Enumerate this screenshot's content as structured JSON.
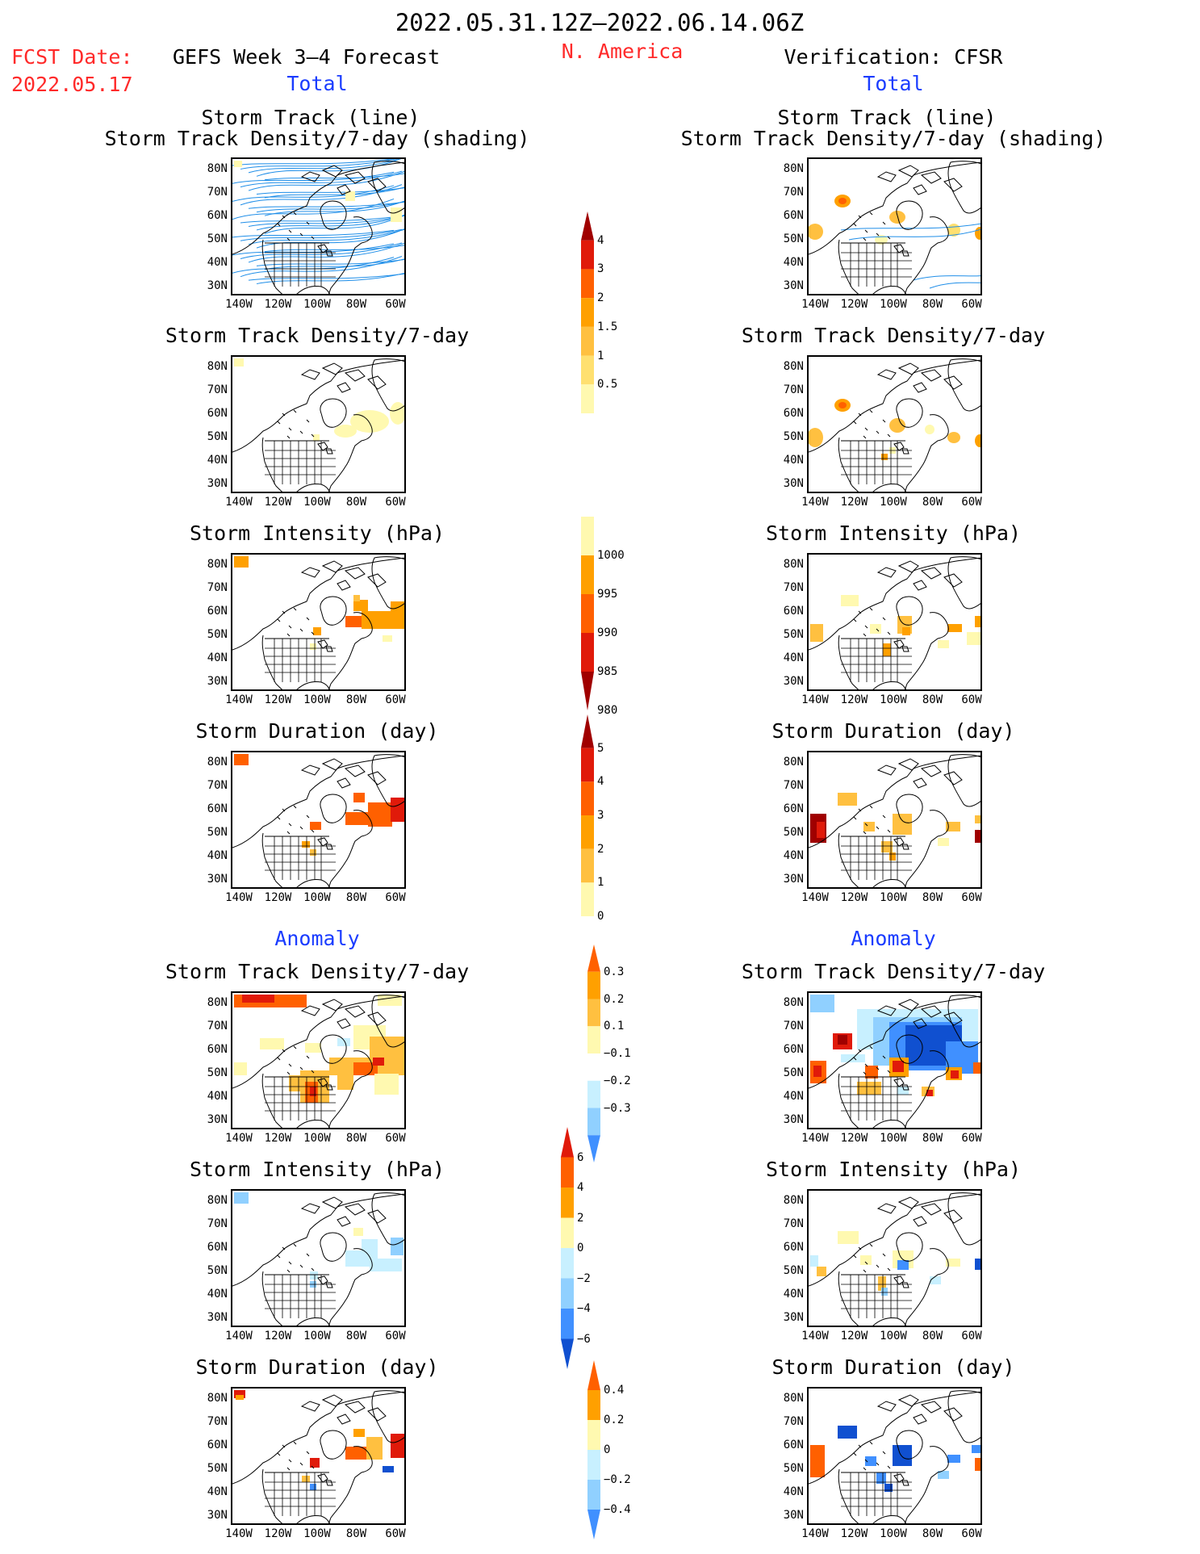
{
  "header": {
    "period": "2022.05.31.12Z–2022.06.14.06Z",
    "fcst_label": "FCST Date:",
    "fcst_date": "2022.05.17",
    "model": "GEFS Week 3–4 Forecast",
    "region": "N. America",
    "verification": "Verification: CFSR"
  },
  "sections": {
    "total_left": "Total",
    "total_right": "Total",
    "anomaly_left": "Anomaly",
    "anomaly_right": "Anomaly"
  },
  "titles": {
    "track_line": "Storm Track (line)",
    "track_shading": "Storm Track Density/7-day (shading)",
    "density": "Storm Track Density/7-day",
    "intensity": "Storm Intensity (hPa)",
    "duration": "Storm Duration (day)"
  },
  "axes": {
    "lat_labels": [
      "80N",
      "70N",
      "60N",
      "50N",
      "40N",
      "30N"
    ],
    "lon_labels": [
      "140W",
      "120W",
      "100W",
      "80W",
      "60W"
    ]
  },
  "colorbars": {
    "density_total": [
      "4",
      "3",
      "2",
      "1.5",
      "1",
      "0.5"
    ],
    "intensity_total": [
      "1000",
      "995",
      "990",
      "985",
      "980"
    ],
    "duration_total": [
      "5",
      "4",
      "3",
      "2",
      "1",
      "0"
    ],
    "density_anom": [
      "0.3",
      "0.2",
      "0.1",
      "−0.1",
      "−0.2",
      "−0.3"
    ],
    "intensity_anom": [
      "6",
      "4",
      "2",
      "0",
      "−2",
      "−4",
      "−6"
    ],
    "duration_anom": [
      "0.4",
      "0.2",
      "0",
      "−0.2",
      "−0.4"
    ]
  },
  "colors": {
    "pale_yellow": "#fff9b0",
    "light_yellow": "#ffe070",
    "light_orange": "#ffc040",
    "orange": "#ffa000",
    "dark_orange": "#ff6000",
    "red": "#e01a0a",
    "dark_red": "#a00000",
    "light_cyan": "#c8f0ff",
    "light_blue": "#90d0ff",
    "blue": "#4090ff",
    "dark_blue": "#1050d0",
    "track_line": "#1f8ee8"
  }
}
